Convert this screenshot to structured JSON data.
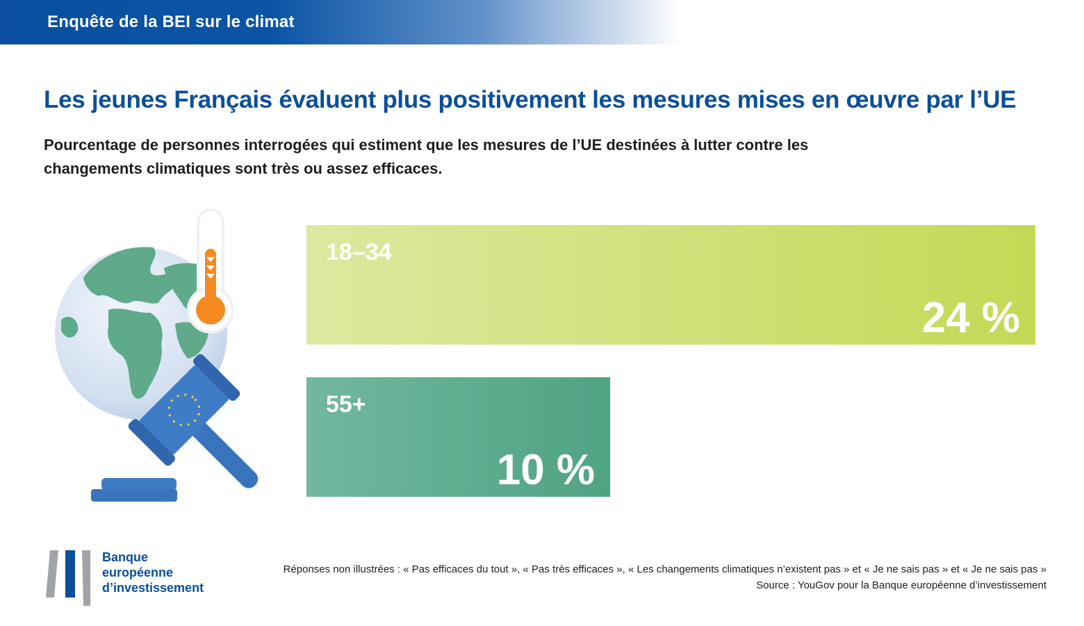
{
  "header": {
    "label": "Enquête de la BEI sur le climat"
  },
  "chart_data": {
    "type": "bar",
    "orientation": "horizontal",
    "title": "Les jeunes Français évaluent plus positivement les mesures mises en œuvre par l’UE",
    "subtitle": "Pourcentage de personnes interrogées qui estiment que les mesures de l’UE destinées à lutter contre les changements climatiques sont très ou assez efficaces.",
    "categories": [
      "18–34",
      "55+"
    ],
    "values": [
      24,
      10
    ],
    "value_labels": [
      "24 %",
      "10 %"
    ],
    "xlim": [
      0,
      24
    ],
    "colors": {
      "18–34": [
        "#dde9a0",
        "#c3d955"
      ],
      "55+": [
        "#72b89e",
        "#4fa383"
      ]
    },
    "legend": "none",
    "grid": false
  },
  "footer": {
    "logo_lines": [
      "Banque",
      "européenne",
      "d’investissement"
    ],
    "note": "Réponses non illustrées : « Pas efficaces du tout », « Pas très efficaces », « Les changements climatiques n’existent pas » et « Je ne sais pas » et « Je ne sais pas »",
    "source": "Source : YouGov pour la Banque européenne d’investissement"
  }
}
